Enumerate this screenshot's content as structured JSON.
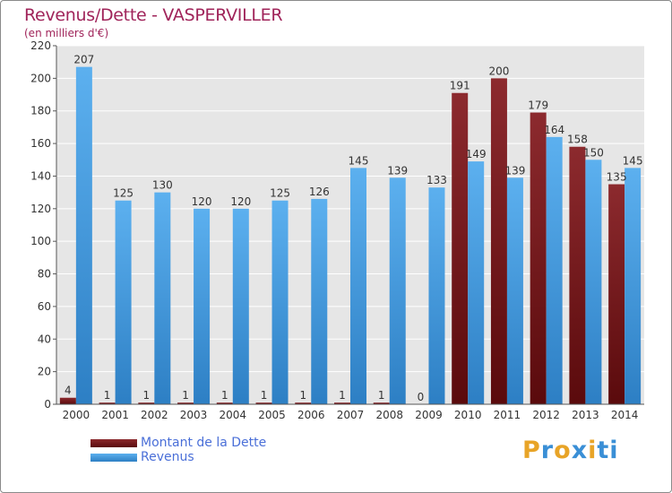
{
  "header": {
    "title": "Revenus/Dette - VASPERVILLER",
    "subtitle": "(en milliers d'€)"
  },
  "legend": {
    "debt_label": "Montant de la Dette",
    "revenue_label": "Revenus"
  },
  "logo": {
    "text": "Proxiti",
    "colors": [
      "#e8a427",
      "#3a8fd6",
      "#e8a427",
      "#3a8fd6",
      "#e8a427",
      "#3a8fd6",
      "#3a8fd6"
    ]
  },
  "colors": {
    "debt": "#7a1a1e",
    "revenue": "#4aa3e6",
    "title": "#a0245a",
    "legend_text": "#4a6fd8"
  },
  "chart_data": {
    "type": "bar",
    "title": "Revenus/Dette - VASPERVILLER",
    "subtitle": "(en milliers d'€)",
    "categories": [
      "2000",
      "2001",
      "2002",
      "2003",
      "2004",
      "2005",
      "2006",
      "2007",
      "2008",
      "2009",
      "2010",
      "2011",
      "2012",
      "2013",
      "2014"
    ],
    "series": [
      {
        "name": "Montant de la Dette",
        "values": [
          4,
          1,
          1,
          1,
          1,
          1,
          1,
          1,
          1,
          0,
          191,
          200,
          179,
          158,
          135
        ]
      },
      {
        "name": "Revenus",
        "values": [
          207,
          125,
          130,
          120,
          120,
          125,
          126,
          145,
          139,
          133,
          149,
          139,
          164,
          150,
          145
        ]
      }
    ],
    "ylim": [
      0,
      220
    ],
    "yticks": [
      0,
      20,
      40,
      60,
      80,
      100,
      120,
      140,
      160,
      180,
      200,
      220
    ],
    "grid": true,
    "legend_position": "bottom-left"
  }
}
